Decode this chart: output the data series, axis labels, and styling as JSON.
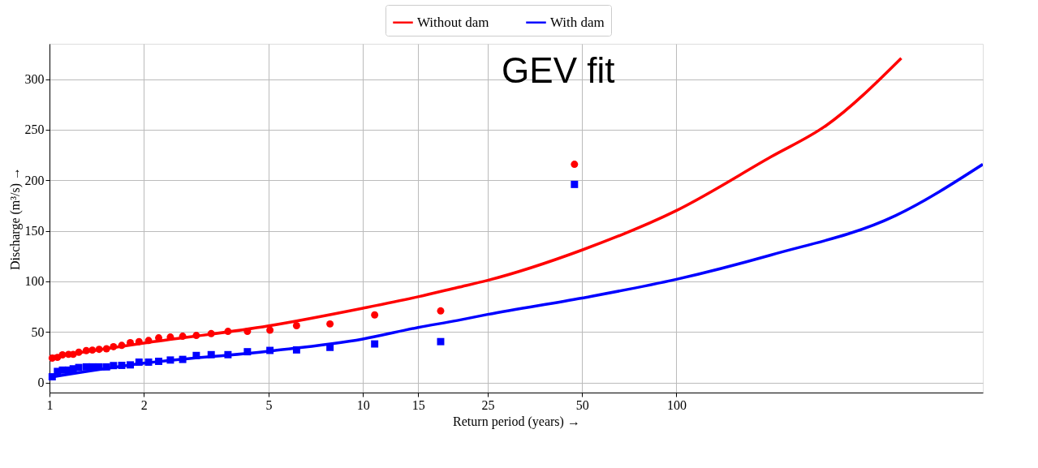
{
  "chart_data": {
    "type": "scatter",
    "xlabel": "Return period (years) →",
    "ylabel": "Discharge (m³/s) →",
    "log": "x",
    "grid": true,
    "legend": "top",
    "xlim": [
      1,
      950
    ],
    "xticks": [
      1,
      2,
      5,
      10,
      15,
      25,
      50,
      100
    ],
    "ylim": [
      -10,
      335
    ],
    "yticks": [
      0,
      50,
      100,
      150,
      200,
      250,
      300
    ],
    "x": [
      1.02,
      1.06,
      1.1,
      1.15,
      1.19,
      1.24,
      1.31,
      1.37,
      1.44,
      1.52,
      1.6,
      1.7,
      1.81,
      1.93,
      2.07,
      2.23,
      2.43,
      2.66,
      2.94,
      3.28,
      3.71,
      4.28,
      5.05,
      6.14,
      7.85,
      10.9,
      17.7,
      47.3
    ],
    "annotations": [
      "GEV fit"
    ],
    "series": [
      {
        "marker": "circle",
        "color": "#ff0000",
        "values": [
          24.1,
          24.8,
          27.3,
          27.8,
          27.8,
          29.9,
          31.5,
          32.0,
          32.8,
          33.3,
          35.4,
          36.7,
          39.4,
          40.4,
          41.5,
          44.1,
          44.9,
          45.7,
          46.5,
          48.3,
          50.5,
          50.5,
          51.8,
          56.2,
          57.9,
          66.8,
          70.8,
          215.8
        ]
      },
      {
        "marker": "square",
        "color": "#0000ff",
        "values": [
          5.6,
          10.9,
          12.2,
          12.2,
          13.5,
          14.8,
          15.4,
          15.4,
          15.4,
          15.4,
          16.7,
          16.9,
          17.4,
          20.1,
          20.1,
          20.9,
          22.2,
          22.8,
          26.7,
          27.5,
          27.5,
          30.4,
          31.7,
          32.2,
          34.7,
          38.1,
          40.4,
          195.9
        ]
      },
      {
        "type": "line",
        "name": "Without dam",
        "color": "#ff0000",
        "x": [
          1,
          2,
          5,
          10,
          15,
          20,
          25,
          50,
          100,
          200,
          300,
          522
        ],
        "values": [
          25,
          39,
          56,
          73.5,
          84.8,
          93.9,
          101,
          131,
          170,
          223,
          254,
          320.8
        ]
      },
      {
        "type": "line",
        "name": "With dam",
        "color": "#0000ff",
        "x": [
          1,
          2,
          5,
          10,
          15,
          20,
          25,
          50,
          100,
          200,
          500,
          950
        ],
        "values": [
          5,
          19,
          31,
          43,
          54.4,
          61.3,
          67.3,
          83.5,
          102,
          126,
          165,
          215.8
        ]
      }
    ]
  }
}
